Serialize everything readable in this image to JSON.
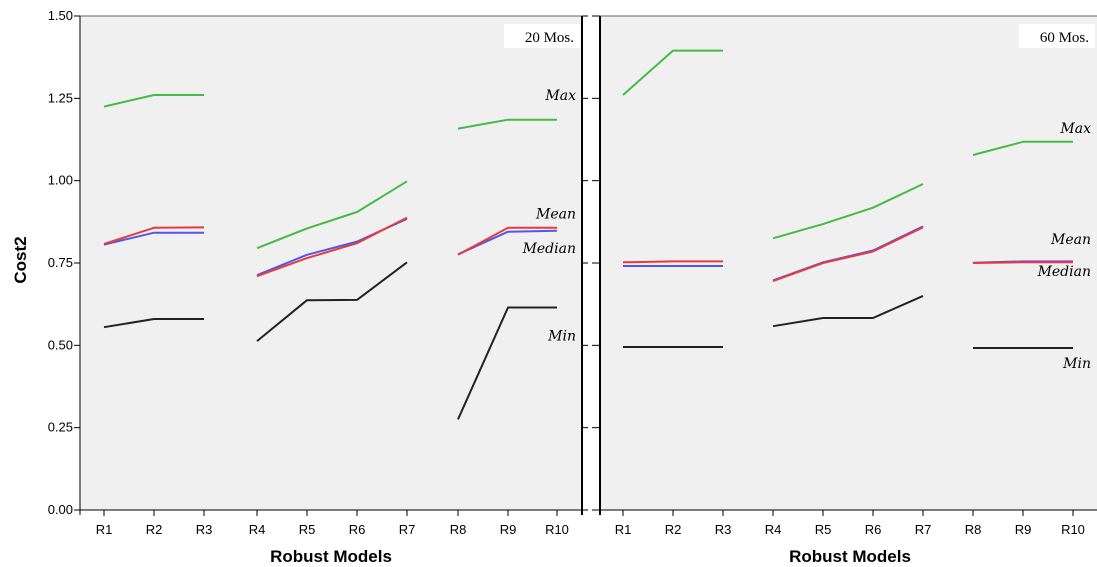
{
  "chart_data": {
    "type": "line",
    "ylabel": "Cost2",
    "xlabel": "Robust Models",
    "ylim": [
      0,
      1.5
    ],
    "yticks": [
      "0.00",
      "0.25",
      "0.50",
      "0.75",
      "1.00",
      "1.25",
      "1.50"
    ],
    "categories": [
      "R1",
      "R2",
      "R3",
      "R4",
      "R5",
      "R6",
      "R7",
      "R8",
      "R9",
      "R10"
    ],
    "line_groups": [
      [
        0,
        1,
        2
      ],
      [
        3,
        4,
        5,
        6
      ],
      [
        7,
        8,
        9
      ]
    ],
    "colors": {
      "Max": "#44bb44",
      "Mean": "#e83a3a",
      "Median": "#5555ee",
      "Min": "#222222",
      "panel_bg": "#f0f0f0"
    },
    "panels": [
      {
        "label": "20 Mos.",
        "series": [
          {
            "name": "Max",
            "values": [
              1.225,
              1.26,
              1.26,
              0.795,
              0.855,
              0.905,
              0.998,
              1.158,
              1.185,
              1.185
            ]
          },
          {
            "name": "Mean",
            "values": [
              0.808,
              0.857,
              0.858,
              0.71,
              0.765,
              0.81,
              0.888,
              0.775,
              0.857,
              0.857
            ]
          },
          {
            "name": "Median",
            "values": [
              0.806,
              0.842,
              0.842,
              0.713,
              0.775,
              0.815,
              0.884,
              0.776,
              0.845,
              0.848
            ]
          },
          {
            "name": "Min",
            "values": [
              0.555,
              0.58,
              0.58,
              0.513,
              0.637,
              0.638,
              0.752,
              0.275,
              0.615,
              0.615
            ]
          }
        ],
        "series_labels": [
          {
            "name": "Max",
            "y": 1.26
          },
          {
            "name": "Mean",
            "y": 0.9
          },
          {
            "name": "Median",
            "y": 0.795
          },
          {
            "name": "Min",
            "y": 0.53
          }
        ]
      },
      {
        "label": "60 Mos.",
        "series": [
          {
            "name": "Max",
            "values": [
              1.26,
              1.395,
              1.395,
              0.825,
              0.868,
              0.918,
              0.99,
              1.078,
              1.118,
              1.118
            ]
          },
          {
            "name": "Mean",
            "values": [
              0.752,
              0.755,
              0.755,
              0.695,
              0.75,
              0.785,
              0.858,
              0.75,
              0.752,
              0.752
            ]
          },
          {
            "name": "Median",
            "values": [
              0.741,
              0.741,
              0.741,
              0.697,
              0.752,
              0.788,
              0.861,
              0.751,
              0.755,
              0.755
            ]
          },
          {
            "name": "Min",
            "values": [
              0.495,
              0.495,
              0.495,
              0.558,
              0.583,
              0.583,
              0.65,
              0.492,
              0.492,
              0.492
            ]
          }
        ],
        "series_labels": [
          {
            "name": "Max",
            "y": 1.16
          },
          {
            "name": "Mean",
            "y": 0.823
          },
          {
            "name": "Median",
            "y": 0.725
          },
          {
            "name": "Min",
            "y": 0.447
          }
        ]
      }
    ]
  }
}
